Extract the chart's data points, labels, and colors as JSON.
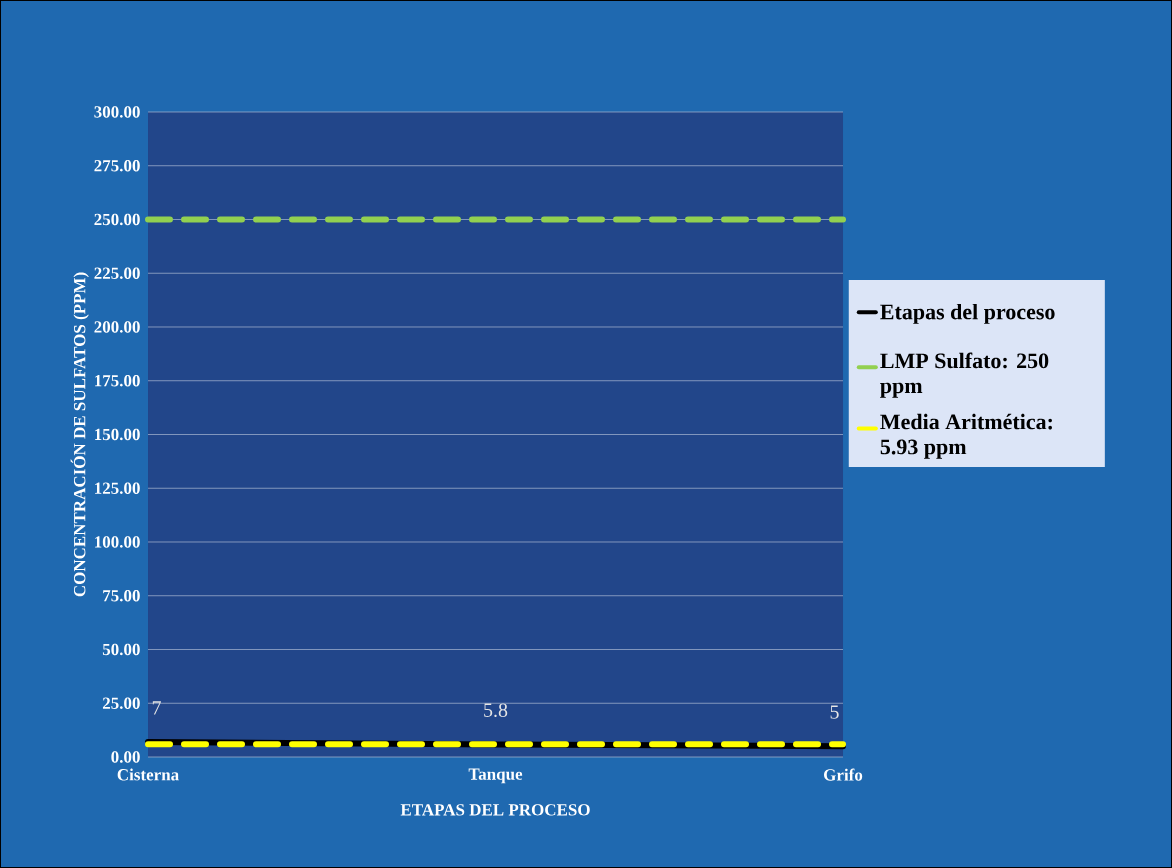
{
  "chart_data": {
    "type": "line",
    "xlabel": "ETAPAS DEL PROCESO",
    "ylabel": "CONCENTRACIÓN DE SULFATOS (PPM)",
    "categories": [
      "Cisterna",
      "Tanque",
      "Grifo"
    ],
    "series": [
      {
        "name": "Etapas del proceso",
        "color": "#000000",
        "line_style": "solid",
        "values": [
          7,
          5.8,
          5
        ],
        "value_labels": [
          "7",
          "5.8",
          "5"
        ]
      },
      {
        "name": "LMP Sulfato: 250 ppm",
        "color": "#92d050",
        "line_style": "dashed",
        "values": [
          250,
          250,
          250
        ]
      },
      {
        "name": "Media Aritmética: 5.93 ppm",
        "color": "#ffff00",
        "line_style": "dashed",
        "values": [
          5.93,
          5.93,
          5.93
        ]
      }
    ],
    "ylim": [
      0,
      300
    ],
    "yticks": [
      {
        "value": 0,
        "label": "0.00"
      },
      {
        "value": 25,
        "label": "25.00"
      },
      {
        "value": 50,
        "label": "50.00"
      },
      {
        "value": 75,
        "label": "75.00"
      },
      {
        "value": 100,
        "label": "100.00"
      },
      {
        "value": 125,
        "label": "125.00"
      },
      {
        "value": 150,
        "label": "150.00"
      },
      {
        "value": 175,
        "label": "175.00"
      },
      {
        "value": 200,
        "label": "200.00"
      },
      {
        "value": 225,
        "label": "225.00"
      },
      {
        "value": 250,
        "label": "250.00"
      },
      {
        "value": 275,
        "label": "275.00"
      },
      {
        "value": 300,
        "label": "300.00"
      }
    ],
    "grid": "y",
    "legend": "right",
    "marker": "none"
  }
}
